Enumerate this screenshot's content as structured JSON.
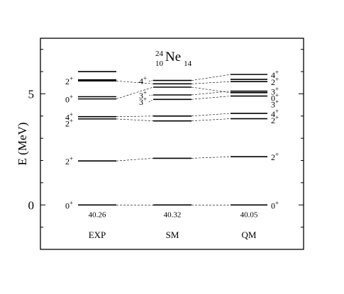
{
  "chart_data": {
    "type": "level-scheme",
    "nucleus": {
      "A": "24",
      "Z": "10",
      "symbol": "Ne",
      "N": "14"
    },
    "ylabel": "E (MeV)",
    "ylim": [
      -2.0,
      7.5
    ],
    "yticks": [
      0,
      5
    ],
    "columns": [
      {
        "name": "EXP",
        "ground_state": "40.26",
        "levels": [
          {
            "E": 0.0,
            "spin": "0+"
          },
          {
            "E": 1.98,
            "spin": "2+"
          },
          {
            "E": 3.87,
            "spin": "2+"
          },
          {
            "E": 3.97,
            "spin": "4+"
          },
          {
            "E": 4.77,
            "spin": "0+"
          },
          {
            "E": 4.87
          },
          {
            "E": 5.58,
            "spin": "2+"
          },
          {
            "E": 5.63
          },
          {
            "E": 6.0
          }
        ]
      },
      {
        "name": "SM",
        "ground_state": "40.32",
        "levels": [
          {
            "E": 0.0
          },
          {
            "E": 2.1
          },
          {
            "E": 3.78
          },
          {
            "E": 4.0
          },
          {
            "E": 4.75,
            "spin": "3+"
          },
          {
            "E": 4.95,
            "spin": "3+"
          },
          {
            "E": 5.3
          },
          {
            "E": 5.45
          },
          {
            "E": 5.6,
            "spin": "4+"
          }
        ]
      },
      {
        "name": "QM",
        "ground_state": "40.05",
        "levels": [
          {
            "E": 0.0,
            "spin": "0+"
          },
          {
            "E": 2.17,
            "spin": "2+"
          },
          {
            "E": 3.88,
            "spin": "2+"
          },
          {
            "E": 4.12,
            "spin": "4+"
          },
          {
            "E": 4.9,
            "spin": "3+"
          },
          {
            "E": 5.05,
            "spin": "0+"
          },
          {
            "E": 5.12,
            "spin": "3+"
          },
          {
            "E": 5.55,
            "spin": "2+"
          },
          {
            "E": 5.65
          },
          {
            "E": 5.87,
            "spin": "4+"
          }
        ]
      }
    ],
    "connections": [
      {
        "from": [
          "EXP",
          0.0
        ],
        "to": [
          "SM",
          0.0
        ]
      },
      {
        "from": [
          "SM",
          0.0
        ],
        "to": [
          "QM",
          0.0
        ]
      },
      {
        "from": [
          "EXP",
          1.98
        ],
        "to": [
          "SM",
          2.1
        ]
      },
      {
        "from": [
          "SM",
          2.1
        ],
        "to": [
          "QM",
          2.17
        ]
      },
      {
        "from": [
          "EXP",
          3.87
        ],
        "to": [
          "SM",
          3.78
        ]
      },
      {
        "from": [
          "SM",
          3.78
        ],
        "to": [
          "QM",
          3.88
        ]
      },
      {
        "from": [
          "EXP",
          3.97
        ],
        "to": [
          "SM",
          4.0
        ]
      },
      {
        "from": [
          "SM",
          4.0
        ],
        "to": [
          "QM",
          4.12
        ]
      },
      {
        "from": [
          "EXP",
          4.77
        ],
        "to": [
          "SM",
          5.3
        ]
      },
      {
        "from": [
          "SM",
          4.75
        ],
        "to": [
          "QM",
          4.9
        ]
      },
      {
        "from": [
          "SM",
          4.95
        ],
        "to": [
          "QM",
          5.12
        ]
      },
      {
        "from": [
          "SM",
          5.3
        ],
        "to": [
          "QM",
          5.05
        ]
      },
      {
        "from": [
          "EXP",
          5.58
        ],
        "to": [
          "SM",
          5.45
        ]
      },
      {
        "from": [
          "SM",
          5.45
        ],
        "to": [
          "QM",
          5.55
        ]
      },
      {
        "from": [
          "SM",
          5.6
        ],
        "to": [
          "QM",
          5.87
        ]
      }
    ]
  }
}
